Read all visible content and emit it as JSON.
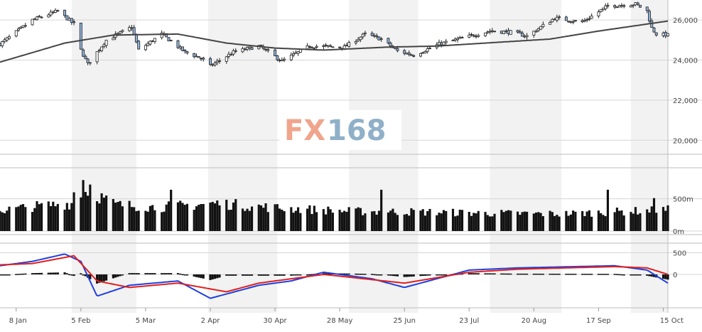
{
  "watermark": {
    "left": "FX",
    "right": "168"
  },
  "chart_data": [
    {
      "type": "candlestick",
      "title": "",
      "price_axis": {
        "ticks": [
          20000,
          22000,
          24000,
          26000
        ],
        "tick_labels": [
          "20,000",
          "22,000",
          "24,000",
          "26,000"
        ],
        "ylim": [
          19300,
          27000
        ]
      },
      "x_tick_labels": [
        "8 Jan",
        "5 Feb",
        "5 Mar",
        "2 Apr",
        "30 Apr",
        "28 May",
        "25 Jun",
        "23 Jul",
        "20 Aug",
        "17 Sep",
        "15 Oct"
      ],
      "price_path_anchors": [
        {
          "date": "2018-01-01",
          "close": 24800
        },
        {
          "date": "2018-01-08",
          "close": 25400
        },
        {
          "date": "2018-01-15",
          "close": 26000
        },
        {
          "date": "2018-01-26",
          "close": 26450
        },
        {
          "date": "2018-02-02",
          "close": 25800
        },
        {
          "date": "2018-02-05",
          "close": 24500
        },
        {
          "date": "2018-02-08",
          "close": 23800
        },
        {
          "date": "2018-02-16",
          "close": 25000
        },
        {
          "date": "2018-02-27",
          "close": 25650
        },
        {
          "date": "2018-03-02",
          "close": 24500
        },
        {
          "date": "2018-03-12",
          "close": 25300
        },
        {
          "date": "2018-03-22",
          "close": 24400
        },
        {
          "date": "2018-03-29",
          "close": 24100
        },
        {
          "date": "2018-04-02",
          "close": 23700
        },
        {
          "date": "2018-04-12",
          "close": 24400
        },
        {
          "date": "2018-04-23",
          "close": 24700
        },
        {
          "date": "2018-05-03",
          "close": 23950
        },
        {
          "date": "2018-05-15",
          "close": 24700
        },
        {
          "date": "2018-05-30",
          "close": 24650
        },
        {
          "date": "2018-06-08",
          "close": 25300
        },
        {
          "date": "2018-06-15",
          "close": 25050
        },
        {
          "date": "2018-06-22",
          "close": 24450
        },
        {
          "date": "2018-06-29",
          "close": 24250
        },
        {
          "date": "2018-07-10",
          "close": 24800
        },
        {
          "date": "2018-07-20",
          "close": 25100
        },
        {
          "date": "2018-08-01",
          "close": 25450
        },
        {
          "date": "2018-08-10",
          "close": 25400
        },
        {
          "date": "2018-08-17",
          "close": 25200
        },
        {
          "date": "2018-08-29",
          "close": 26100
        },
        {
          "date": "2018-09-10",
          "close": 25900
        },
        {
          "date": "2018-09-21",
          "close": 26700
        },
        {
          "date": "2018-10-03",
          "close": 26800
        },
        {
          "date": "2018-10-08",
          "close": 26450
        },
        {
          "date": "2018-10-10",
          "close": 25600
        },
        {
          "date": "2018-10-12",
          "close": 25300
        },
        {
          "date": "2018-10-17",
          "close": 25250
        }
      ],
      "moving_average_anchors": [
        {
          "date": "2018-01-01",
          "value": 23900
        },
        {
          "date": "2018-01-29",
          "value": 24850
        },
        {
          "date": "2018-02-19",
          "value": 25250
        },
        {
          "date": "2018-03-19",
          "value": 25300
        },
        {
          "date": "2018-04-09",
          "value": 24850
        },
        {
          "date": "2018-04-30",
          "value": 24600
        },
        {
          "date": "2018-05-21",
          "value": 24500
        },
        {
          "date": "2018-06-18",
          "value": 24650
        },
        {
          "date": "2018-07-09",
          "value": 24700
        },
        {
          "date": "2018-07-30",
          "value": 24850
        },
        {
          "date": "2018-08-27",
          "value": 25050
        },
        {
          "date": "2018-09-17",
          "value": 25450
        },
        {
          "date": "2018-10-17",
          "value": 25950
        }
      ]
    },
    {
      "type": "bar",
      "title": "",
      "tick_labels": [
        "0m",
        "500m"
      ],
      "ticks": [
        0,
        500
      ],
      "ylim": [
        0,
        980
      ],
      "volume_path_anchors": [
        {
          "date": "2018-01-01",
          "volume": 310
        },
        {
          "date": "2018-01-15",
          "volume": 370
        },
        {
          "date": "2018-02-01",
          "volume": 420
        },
        {
          "date": "2018-02-08",
          "volume": 620
        },
        {
          "date": "2018-02-20",
          "volume": 400
        },
        {
          "date": "2018-03-10",
          "volume": 360
        },
        {
          "date": "2018-04-05",
          "volume": 420
        },
        {
          "date": "2018-05-01",
          "volume": 350
        },
        {
          "date": "2018-06-01",
          "volume": 300
        },
        {
          "date": "2018-07-01",
          "volume": 290
        },
        {
          "date": "2018-08-01",
          "volume": 270
        },
        {
          "date": "2018-09-01",
          "volume": 260
        },
        {
          "date": "2018-10-01",
          "volume": 300
        },
        {
          "date": "2018-10-17",
          "volume": 320
        }
      ],
      "spikes": [
        {
          "date": "2018-02-02",
          "volume": 600
        },
        {
          "date": "2018-02-06",
          "volume": 790
        },
        {
          "date": "2018-02-09",
          "volume": 720
        },
        {
          "date": "2018-03-16",
          "volume": 640
        },
        {
          "date": "2018-06-15",
          "volume": 640
        },
        {
          "date": "2018-09-21",
          "volume": 640
        },
        {
          "date": "2018-10-11",
          "volume": 510
        }
      ]
    },
    {
      "type": "line",
      "title": "",
      "tick_labels": [
        "0",
        "500"
      ],
      "ticks": [
        0,
        500
      ],
      "ylim": [
        -720,
        720
      ],
      "series": [
        {
          "color": "#1f3fe0",
          "anchors": [
            {
              "date": "2018-01-01",
              "value": 200
            },
            {
              "date": "2018-01-15",
              "value": 300
            },
            {
              "date": "2018-01-29",
              "value": 470
            },
            {
              "date": "2018-02-05",
              "value": 300
            },
            {
              "date": "2018-02-12",
              "value": -500
            },
            {
              "date": "2018-02-26",
              "value": -250
            },
            {
              "date": "2018-03-19",
              "value": -150
            },
            {
              "date": "2018-04-02",
              "value": -550
            },
            {
              "date": "2018-04-23",
              "value": -250
            },
            {
              "date": "2018-05-07",
              "value": -150
            },
            {
              "date": "2018-05-21",
              "value": 50
            },
            {
              "date": "2018-06-11",
              "value": -100
            },
            {
              "date": "2018-06-25",
              "value": -300
            },
            {
              "date": "2018-07-23",
              "value": 100
            },
            {
              "date": "2018-08-13",
              "value": 150
            },
            {
              "date": "2018-09-24",
              "value": 200
            },
            {
              "date": "2018-10-08",
              "value": 100
            },
            {
              "date": "2018-10-17",
              "value": -200
            }
          ]
        },
        {
          "color": "#e01f1f",
          "anchors": [
            {
              "date": "2018-01-01",
              "value": 220
            },
            {
              "date": "2018-01-15",
              "value": 250
            },
            {
              "date": "2018-02-02",
              "value": 430
            },
            {
              "date": "2018-02-12",
              "value": -150
            },
            {
              "date": "2018-02-26",
              "value": -300
            },
            {
              "date": "2018-03-19",
              "value": -200
            },
            {
              "date": "2018-04-09",
              "value": -400
            },
            {
              "date": "2018-04-23",
              "value": -200
            },
            {
              "date": "2018-05-21",
              "value": 0
            },
            {
              "date": "2018-06-25",
              "value": -200
            },
            {
              "date": "2018-07-23",
              "value": 50
            },
            {
              "date": "2018-08-13",
              "value": 120
            },
            {
              "date": "2018-09-24",
              "value": 180
            },
            {
              "date": "2018-10-08",
              "value": 150
            },
            {
              "date": "2018-10-17",
              "value": 0
            }
          ]
        }
      ]
    }
  ]
}
